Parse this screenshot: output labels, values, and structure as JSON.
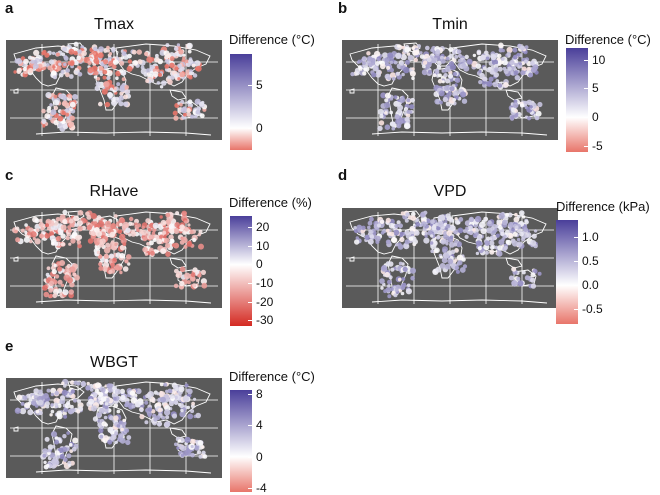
{
  "colors": {
    "neg": "#e8756a",
    "neg_strong": "#d42a22",
    "mid": "#ffffff",
    "pos": "#4a3f9a",
    "map_bg": "#5a5a5a",
    "land_outline": "#ffffff"
  },
  "chart_data": [
    {
      "type": "map",
      "letter": "a",
      "title": "Tmax",
      "legend_title": "Difference (°C)",
      "ticks": [
        5,
        0
      ],
      "tick_labels": [
        "5",
        "0"
      ],
      "range": [
        -2.5,
        8.5
      ],
      "bias": "mixed"
    },
    {
      "type": "map",
      "letter": "b",
      "title": "Tmin",
      "legend_title": "Difference (°C)",
      "ticks": [
        10,
        5,
        0,
        -5
      ],
      "tick_labels": [
        "10",
        "5",
        "0",
        "-5"
      ],
      "range": [
        -6,
        12
      ],
      "bias": "positive"
    },
    {
      "type": "map",
      "letter": "c",
      "title": "RHave",
      "legend_title": "Difference (%)",
      "ticks": [
        20,
        10,
        0,
        -10,
        -20,
        -30
      ],
      "tick_labels": [
        "20",
        "10",
        "0",
        "-10",
        "-20",
        "-30"
      ],
      "range": [
        -33,
        26
      ],
      "bias": "negative"
    },
    {
      "type": "map",
      "letter": "d",
      "title": "VPD",
      "legend_title": "Difference (kPa)",
      "ticks": [
        1.0,
        0.5,
        0.0,
        -0.5
      ],
      "tick_labels": [
        "1.0",
        "0.5",
        "0.0",
        "-0.5"
      ],
      "range": [
        -0.8,
        1.35
      ],
      "bias": "positive"
    },
    {
      "type": "map",
      "letter": "e",
      "title": "WBGT",
      "legend_title": "Difference (°C)",
      "ticks": [
        8,
        4,
        0,
        -4
      ],
      "tick_labels": [
        "8",
        "4",
        "0",
        "-4"
      ],
      "range": [
        -4.5,
        8.5
      ],
      "bias": "positive"
    }
  ]
}
